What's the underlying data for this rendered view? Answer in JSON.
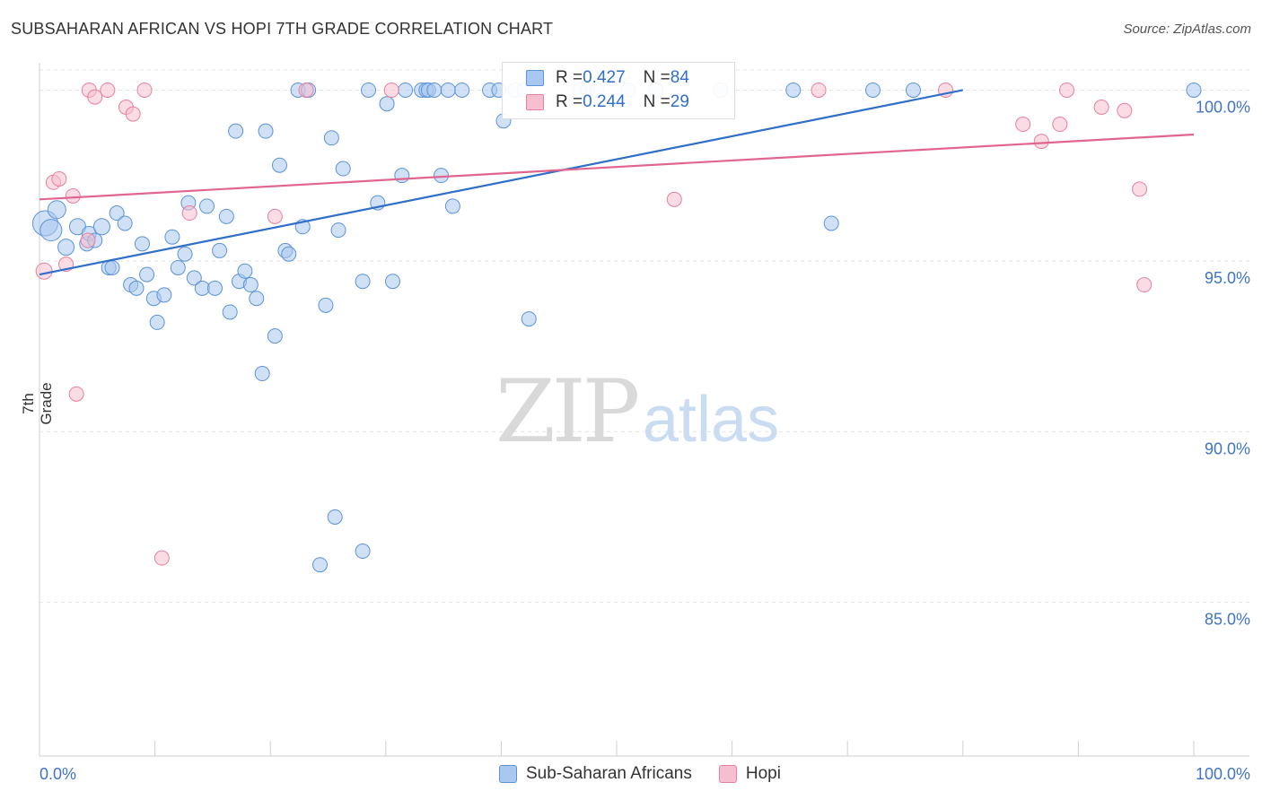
{
  "title": "SUBSAHARAN AFRICAN VS HOPI 7TH GRADE CORRELATION CHART",
  "source": "Source: ZipAtlas.com",
  "watermark": {
    "zip": "ZIP",
    "atlas": "atlas"
  },
  "colors": {
    "blue": "#5b93d9",
    "blue_fill": "#a9c8ef",
    "blue_line": "#2f6fca",
    "pink": "#e87fa0",
    "pink_fill": "#f6bfd0",
    "pink_line": "#e0668f",
    "tick_text": "#3f74c6",
    "grid": "#e4e4e4"
  },
  "legend": {
    "series1": {
      "label": "Sub-Saharan Africans",
      "r_label": "R = ",
      "r": "0.427",
      "n_label": "N = ",
      "n": "84"
    },
    "series2": {
      "label": "Hopi",
      "r_label": "R = ",
      "r": "0.244",
      "n_label": "N = ",
      "n": "29"
    }
  },
  "chart_data": {
    "type": "scatter",
    "title": "SUBSAHARAN AFRICAN VS HOPI 7TH GRADE CORRELATION CHART",
    "xlabel": "",
    "ylabel": "7th Grade",
    "xlim": [
      0,
      100
    ],
    "ylim": [
      80.5,
      100.8
    ],
    "x_tick_labels": [
      "0.0%",
      "100.0%"
    ],
    "y_ticks": [
      85,
      90,
      95,
      100
    ],
    "y_tick_labels": [
      "85.0%",
      "90.0%",
      "95.0%",
      "100.0%"
    ],
    "series": [
      {
        "name": "Sub-Saharan Africans",
        "color": "#5b93d9",
        "trend": {
          "x": [
            0,
            80
          ],
          "y": [
            94.6,
            100.0
          ]
        },
        "points": [
          [
            0.5,
            96.1,
            14
          ],
          [
            1.0,
            95.9,
            12
          ],
          [
            1.5,
            96.5,
            10
          ],
          [
            2.3,
            95.4,
            9
          ],
          [
            3.3,
            96.0,
            9
          ],
          [
            4.1,
            95.5,
            8
          ],
          [
            4.3,
            95.8,
            8
          ],
          [
            4.8,
            95.6,
            8
          ],
          [
            5.4,
            96.0,
            9
          ],
          [
            6.0,
            94.8,
            8
          ],
          [
            6.3,
            94.8,
            8
          ],
          [
            6.7,
            96.4,
            8
          ],
          [
            7.4,
            96.1,
            8
          ],
          [
            7.9,
            94.3,
            8
          ],
          [
            8.4,
            94.2,
            8
          ],
          [
            8.9,
            95.5,
            8
          ],
          [
            9.3,
            94.6,
            8
          ],
          [
            9.9,
            93.9,
            8
          ],
          [
            10.2,
            93.2,
            8
          ],
          [
            10.8,
            94.0,
            8
          ],
          [
            11.5,
            95.7,
            8
          ],
          [
            12.0,
            94.8,
            8
          ],
          [
            12.6,
            95.2,
            8
          ],
          [
            12.9,
            96.7,
            8
          ],
          [
            13.4,
            94.5,
            8
          ],
          [
            14.1,
            94.2,
            8
          ],
          [
            14.5,
            96.6,
            8
          ],
          [
            15.2,
            94.2,
            8
          ],
          [
            15.6,
            95.3,
            8
          ],
          [
            16.2,
            96.3,
            8
          ],
          [
            16.5,
            93.5,
            8
          ],
          [
            17.0,
            98.8,
            8
          ],
          [
            17.3,
            94.4,
            8
          ],
          [
            17.8,
            94.7,
            8
          ],
          [
            18.3,
            94.3,
            8
          ],
          [
            18.8,
            93.9,
            8
          ],
          [
            19.3,
            91.7,
            8
          ],
          [
            19.6,
            98.8,
            8
          ],
          [
            20.4,
            92.8,
            8
          ],
          [
            20.8,
            97.8,
            8
          ],
          [
            21.3,
            95.3,
            8
          ],
          [
            21.6,
            95.2,
            8
          ],
          [
            22.4,
            100.0,
            8
          ],
          [
            22.8,
            96.0,
            8
          ],
          [
            23.3,
            100.0,
            8
          ],
          [
            24.3,
            86.1,
            8
          ],
          [
            24.8,
            93.7,
            8
          ],
          [
            25.3,
            98.6,
            8
          ],
          [
            25.6,
            87.5,
            8
          ],
          [
            25.9,
            95.9,
            8
          ],
          [
            26.3,
            97.7,
            8
          ],
          [
            28.0,
            86.5,
            8
          ],
          [
            28.0,
            94.4,
            8
          ],
          [
            28.5,
            100.0,
            8
          ],
          [
            29.3,
            96.7,
            8
          ],
          [
            30.1,
            99.6,
            8
          ],
          [
            30.6,
            94.4,
            8
          ],
          [
            31.4,
            97.5,
            8
          ],
          [
            31.7,
            100.0,
            8
          ],
          [
            33.1,
            100.0,
            8
          ],
          [
            33.5,
            100.0,
            8
          ],
          [
            33.7,
            100.0,
            8
          ],
          [
            34.2,
            100.0,
            8
          ],
          [
            34.8,
            97.5,
            8
          ],
          [
            35.4,
            100.0,
            8
          ],
          [
            35.8,
            96.6,
            8
          ],
          [
            36.6,
            100.0,
            8
          ],
          [
            39.0,
            100.0,
            8
          ],
          [
            39.8,
            100.0,
            8
          ],
          [
            40.2,
            99.1,
            8
          ],
          [
            41.2,
            100.0,
            8
          ],
          [
            42.0,
            100.0,
            8
          ],
          [
            42.4,
            93.3,
            8
          ],
          [
            46.8,
            100.0,
            8
          ],
          [
            47.5,
            100.0,
            8
          ],
          [
            48.3,
            100.0,
            8
          ],
          [
            51.0,
            100.0,
            8
          ],
          [
            53.4,
            100.0,
            8
          ],
          [
            59.0,
            100.0,
            8
          ],
          [
            65.3,
            100.0,
            8
          ],
          [
            68.6,
            96.1,
            8
          ],
          [
            72.2,
            100.0,
            8
          ],
          [
            75.7,
            100.0,
            8
          ],
          [
            100.0,
            100.0,
            8
          ]
        ]
      },
      {
        "name": "Hopi",
        "color": "#e87fa0",
        "trend": {
          "x": [
            0,
            100
          ],
          "y": [
            96.8,
            98.7
          ]
        },
        "points": [
          [
            0.4,
            94.7,
            9
          ],
          [
            1.2,
            97.3,
            8
          ],
          [
            1.7,
            97.4,
            8
          ],
          [
            2.3,
            94.9,
            8
          ],
          [
            2.9,
            96.9,
            8
          ],
          [
            3.2,
            91.1,
            8
          ],
          [
            4.2,
            95.6,
            8
          ],
          [
            4.3,
            100.0,
            8
          ],
          [
            4.8,
            99.8,
            8
          ],
          [
            5.9,
            100.0,
            8
          ],
          [
            7.5,
            99.5,
            8
          ],
          [
            8.1,
            99.3,
            8
          ],
          [
            9.1,
            100.0,
            8
          ],
          [
            10.6,
            86.3,
            8
          ],
          [
            13.0,
            96.4,
            8
          ],
          [
            20.4,
            96.3,
            8
          ],
          [
            23.1,
            100.0,
            8
          ],
          [
            30.5,
            100.0,
            8
          ],
          [
            55.0,
            96.8,
            8
          ],
          [
            67.5,
            100.0,
            8
          ],
          [
            78.5,
            100.0,
            8
          ],
          [
            85.2,
            99.0,
            8
          ],
          [
            86.8,
            98.5,
            8
          ],
          [
            88.4,
            99.0,
            8
          ],
          [
            89.0,
            100.0,
            8
          ],
          [
            92.0,
            99.5,
            8
          ],
          [
            94.0,
            99.4,
            8
          ],
          [
            95.3,
            97.1,
            8
          ],
          [
            95.7,
            94.3,
            8
          ]
        ]
      }
    ]
  }
}
